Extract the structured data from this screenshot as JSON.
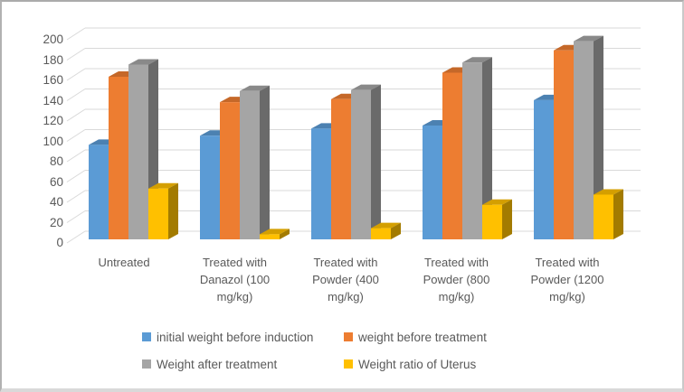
{
  "chart": {
    "background": "#FFFFFF",
    "border_color": "#ABABAB",
    "gridline_color": "#D9D9D9",
    "text_color": "#595959"
  },
  "chart_data": {
    "type": "bar",
    "effect": "3d-clustered-column",
    "title": "",
    "xlabel": "",
    "ylabel": "",
    "categories": [
      "Untreated",
      "Treated with Danazol (100 mg/kg)",
      "Treated with Powder (400 mg/kg)",
      "Treated with Powder (800 mg/kg)",
      "Treated with Powder (1200 mg/kg)"
    ],
    "series": [
      {
        "name": "initial weight before induction",
        "color": "#5B9BD5",
        "values": [
          93,
          102,
          109,
          112,
          137
        ]
      },
      {
        "name": "weight before treatment",
        "color": "#ED7D31",
        "values": [
          160,
          135,
          138,
          164,
          186
        ]
      },
      {
        "name": "Weight after treatment",
        "color": "#A5A5A5",
        "values": [
          172,
          146,
          147,
          174,
          195
        ]
      },
      {
        "name": "Weight ratio of Uterus",
        "color": "#FFC000",
        "values": [
          50,
          5,
          11,
          34,
          44
        ]
      }
    ],
    "ylim": [
      0,
      200
    ],
    "yticks": [
      0,
      20,
      40,
      60,
      80,
      100,
      120,
      140,
      160,
      180,
      200
    ],
    "grid": true,
    "legend_position": "bottom"
  }
}
